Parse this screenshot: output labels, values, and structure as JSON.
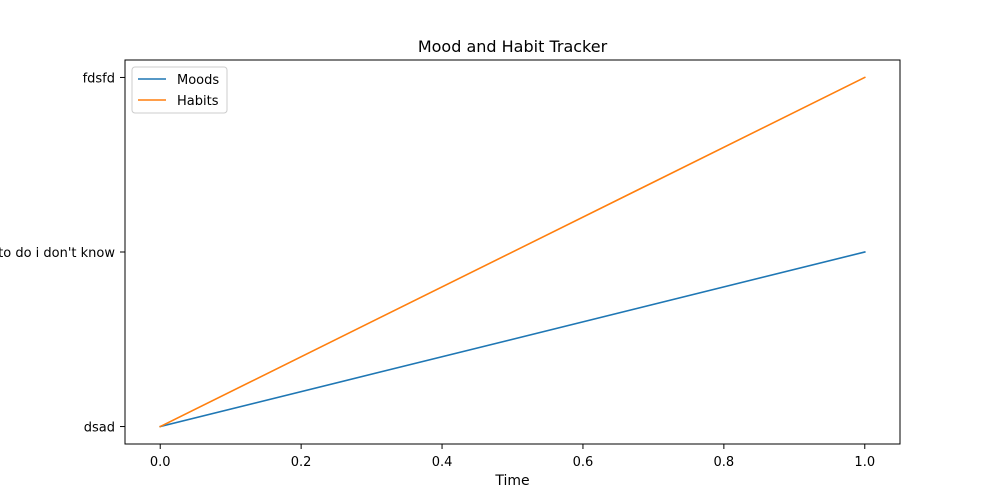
{
  "chart_data": {
    "type": "line",
    "title": "Mood and Habit Tracker",
    "xlabel": "Time",
    "ylabel": "",
    "xlim": [
      -0.05,
      1.05
    ],
    "x_ticks": [
      0.0,
      0.2,
      0.4,
      0.6,
      0.8,
      1.0
    ],
    "x_tick_labels": [
      "0.0",
      "0.2",
      "0.4",
      "0.6",
      "0.8",
      "1.0"
    ],
    "y_categories": [
      "dsad",
      "what to do i don't know",
      "fdsfd"
    ],
    "grid": false,
    "legend_position": "upper-left",
    "series": [
      {
        "name": "Moods",
        "color": "#1f77b4",
        "x": [
          0.0,
          1.0
        ],
        "y": [
          "dsad",
          "what to do i don't know"
        ]
      },
      {
        "name": "Habits",
        "color": "#ff7f0e",
        "x": [
          0.0,
          1.0
        ],
        "y": [
          "dsad",
          "fdsfd"
        ]
      }
    ]
  }
}
